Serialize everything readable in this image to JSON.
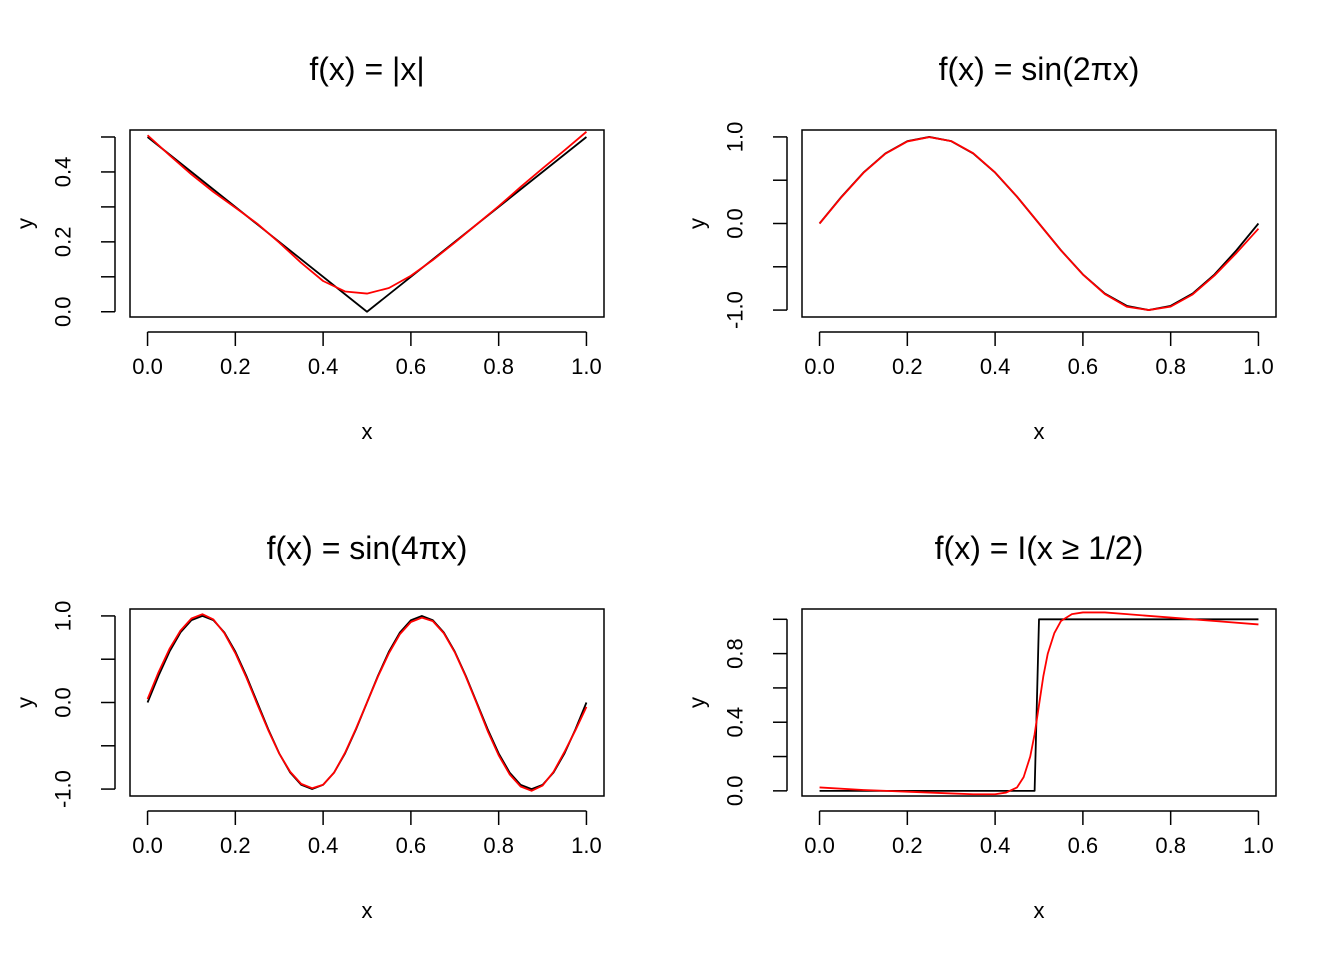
{
  "chart_data": [
    {
      "type": "line",
      "title": "f(x) = |x|",
      "xlabel": "x",
      "ylabel": "y",
      "xlim": [
        -0.04,
        1.04
      ],
      "ylim": [
        -0.015,
        0.52
      ],
      "xticks": [
        0.0,
        0.2,
        0.4,
        0.6,
        0.8,
        1.0
      ],
      "xtick_labels": [
        "0.0",
        "0.2",
        "0.4",
        "0.6",
        "0.8",
        "1.0"
      ],
      "yticks": [
        0.0,
        0.1,
        0.2,
        0.3,
        0.4,
        0.5
      ],
      "ytick_labels": [
        "0.0",
        "",
        "0.2",
        "",
        "0.4",
        ""
      ],
      "grid": false,
      "series": [
        {
          "color": "#000000",
          "x": [
            0.0,
            0.5,
            1.0
          ],
          "y": [
            0.5,
            0.0,
            0.5
          ]
        },
        {
          "color": "#ff0000",
          "x": [
            0.0,
            0.05,
            0.1,
            0.15,
            0.2,
            0.25,
            0.3,
            0.35,
            0.4,
            0.45,
            0.5,
            0.55,
            0.6,
            0.65,
            0.7,
            0.75,
            0.8,
            0.85,
            0.9,
            0.95,
            1.0
          ],
          "y": [
            0.505,
            0.448,
            0.393,
            0.343,
            0.298,
            0.252,
            0.198,
            0.14,
            0.088,
            0.058,
            0.052,
            0.068,
            0.103,
            0.148,
            0.198,
            0.25,
            0.302,
            0.357,
            0.41,
            0.462,
            0.515
          ]
        }
      ]
    },
    {
      "type": "line",
      "title": "f(x) = sin(2πx)",
      "xlabel": "x",
      "ylabel": "y",
      "xlim": [
        -0.04,
        1.04
      ],
      "ylim": [
        -1.08,
        1.08
      ],
      "xticks": [
        0.0,
        0.2,
        0.4,
        0.6,
        0.8,
        1.0
      ],
      "xtick_labels": [
        "0.0",
        "0.2",
        "0.4",
        "0.6",
        "0.8",
        "1.0"
      ],
      "yticks": [
        -1.0,
        -0.5,
        0.0,
        0.5,
        1.0
      ],
      "ytick_labels": [
        "-1.0",
        "",
        "0.0",
        "",
        "1.0"
      ],
      "grid": false,
      "series": [
        {
          "color": "#000000",
          "x": [
            0.0,
            0.05,
            0.1,
            0.15,
            0.2,
            0.25,
            0.3,
            0.35,
            0.4,
            0.45,
            0.5,
            0.55,
            0.6,
            0.65,
            0.7,
            0.75,
            0.8,
            0.85,
            0.9,
            0.95,
            1.0
          ],
          "y": [
            0.0,
            0.309,
            0.588,
            0.809,
            0.951,
            1.0,
            0.951,
            0.809,
            0.588,
            0.309,
            0.0,
            -0.309,
            -0.588,
            -0.809,
            -0.951,
            -1.0,
            -0.951,
            -0.809,
            -0.588,
            -0.309,
            0.0
          ]
        },
        {
          "color": "#ff0000",
          "x": [
            0.0,
            0.05,
            0.1,
            0.15,
            0.2,
            0.25,
            0.3,
            0.35,
            0.4,
            0.45,
            0.5,
            0.55,
            0.6,
            0.65,
            0.7,
            0.75,
            0.8,
            0.85,
            0.9,
            0.95,
            1.0
          ],
          "y": [
            0.0,
            0.305,
            0.585,
            0.806,
            0.948,
            0.998,
            0.952,
            0.812,
            0.59,
            0.31,
            0.0,
            -0.31,
            -0.59,
            -0.815,
            -0.962,
            -1.0,
            -0.96,
            -0.82,
            -0.6,
            -0.34,
            -0.06
          ]
        }
      ]
    },
    {
      "type": "line",
      "title": "f(x) = sin(4πx)",
      "xlabel": "x",
      "ylabel": "y",
      "xlim": [
        -0.04,
        1.04
      ],
      "ylim": [
        -1.08,
        1.08
      ],
      "xticks": [
        0.0,
        0.2,
        0.4,
        0.6,
        0.8,
        1.0
      ],
      "xtick_labels": [
        "0.0",
        "0.2",
        "0.4",
        "0.6",
        "0.8",
        "1.0"
      ],
      "yticks": [
        -1.0,
        -0.5,
        0.0,
        0.5,
        1.0
      ],
      "ytick_labels": [
        "-1.0",
        "",
        "0.0",
        "",
        "1.0"
      ],
      "grid": false,
      "series": [
        {
          "color": "#000000",
          "x": [
            0.0,
            0.025,
            0.05,
            0.075,
            0.1,
            0.125,
            0.15,
            0.175,
            0.2,
            0.225,
            0.25,
            0.275,
            0.3,
            0.325,
            0.35,
            0.375,
            0.4,
            0.425,
            0.45,
            0.475,
            0.5,
            0.525,
            0.55,
            0.575,
            0.6,
            0.625,
            0.65,
            0.675,
            0.7,
            0.725,
            0.75,
            0.775,
            0.8,
            0.825,
            0.85,
            0.875,
            0.9,
            0.925,
            0.95,
            0.975,
            1.0
          ],
          "y": [
            0.0,
            0.309,
            0.588,
            0.809,
            0.951,
            1.0,
            0.951,
            0.809,
            0.588,
            0.309,
            0.0,
            -0.309,
            -0.588,
            -0.809,
            -0.951,
            -1.0,
            -0.951,
            -0.809,
            -0.588,
            -0.309,
            0.0,
            0.309,
            0.588,
            0.809,
            0.951,
            1.0,
            0.951,
            0.809,
            0.588,
            0.309,
            0.0,
            -0.309,
            -0.588,
            -0.809,
            -0.951,
            -1.0,
            -0.951,
            -0.809,
            -0.588,
            -0.309,
            0.0
          ]
        },
        {
          "color": "#ff0000",
          "x": [
            0.0,
            0.025,
            0.05,
            0.075,
            0.1,
            0.125,
            0.15,
            0.175,
            0.2,
            0.225,
            0.25,
            0.275,
            0.3,
            0.325,
            0.35,
            0.375,
            0.4,
            0.425,
            0.45,
            0.475,
            0.5,
            0.525,
            0.55,
            0.575,
            0.6,
            0.625,
            0.65,
            0.675,
            0.7,
            0.725,
            0.75,
            0.775,
            0.8,
            0.825,
            0.85,
            0.875,
            0.9,
            0.925,
            0.95,
            0.975,
            1.0
          ],
          "y": [
            0.04,
            0.35,
            0.62,
            0.83,
            0.97,
            1.02,
            0.96,
            0.8,
            0.57,
            0.29,
            -0.02,
            -0.32,
            -0.59,
            -0.8,
            -0.94,
            -0.99,
            -0.95,
            -0.81,
            -0.58,
            -0.3,
            0.0,
            0.3,
            0.57,
            0.79,
            0.93,
            0.98,
            0.94,
            0.8,
            0.58,
            0.3,
            -0.01,
            -0.33,
            -0.61,
            -0.83,
            -0.97,
            -1.02,
            -0.96,
            -0.8,
            -0.57,
            -0.32,
            -0.05
          ]
        }
      ]
    },
    {
      "type": "line",
      "title": "f(x) = I(x ≥ 1/2)",
      "xlabel": "x",
      "ylabel": "y",
      "xlim": [
        -0.04,
        1.04
      ],
      "ylim": [
        -0.03,
        1.06
      ],
      "xticks": [
        0.0,
        0.2,
        0.4,
        0.6,
        0.8,
        1.0
      ],
      "xtick_labels": [
        "0.0",
        "0.2",
        "0.4",
        "0.6",
        "0.8",
        "1.0"
      ],
      "yticks": [
        0.0,
        0.2,
        0.4,
        0.6,
        0.8,
        1.0
      ],
      "ytick_labels": [
        "0.0",
        "",
        "0.4",
        "",
        "0.8",
        ""
      ],
      "grid": false,
      "series": [
        {
          "color": "#000000",
          "x": [
            0.0,
            0.49,
            0.5,
            1.0
          ],
          "y": [
            0.0,
            0.0,
            1.0,
            1.0
          ]
        },
        {
          "color": "#ff0000",
          "x": [
            0.0,
            0.1,
            0.2,
            0.3,
            0.35,
            0.4,
            0.425,
            0.45,
            0.465,
            0.48,
            0.49,
            0.5,
            0.51,
            0.52,
            0.535,
            0.55,
            0.575,
            0.6,
            0.65,
            0.7,
            0.8,
            0.9,
            1.0
          ],
          "y": [
            0.02,
            0.005,
            -0.005,
            -0.015,
            -0.02,
            -0.02,
            -0.01,
            0.02,
            0.08,
            0.2,
            0.33,
            0.5,
            0.67,
            0.8,
            0.92,
            0.99,
            1.03,
            1.04,
            1.04,
            1.03,
            1.01,
            0.99,
            0.97
          ]
        }
      ]
    }
  ]
}
